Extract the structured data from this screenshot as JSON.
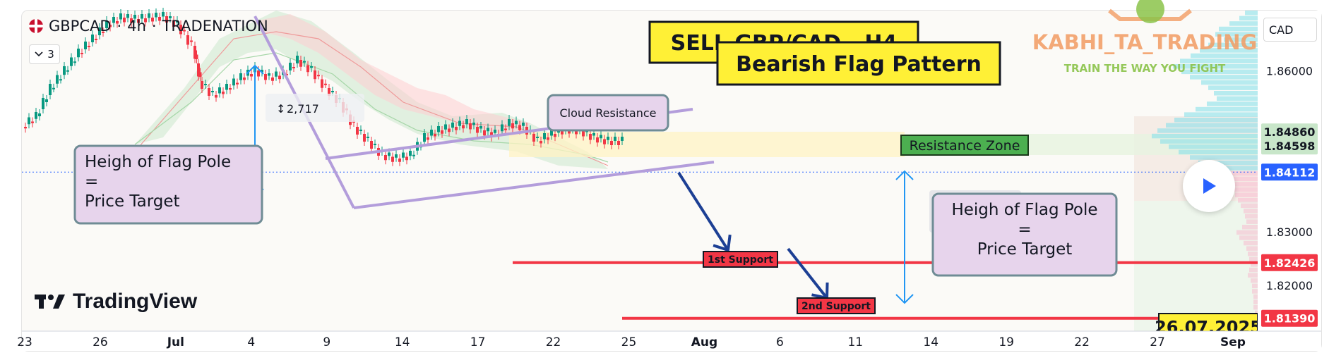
{
  "header": {
    "symbol": "GBPCAD",
    "interval": "4h",
    "source": "TRADENATION",
    "indicator_count": "3",
    "currency": "CAD"
  },
  "branding": {
    "tradingview": "TradingView",
    "watermark": "KABHI_TA_TRADING",
    "tagline": "TRAIN THE WAY YOU FIGHT"
  },
  "icons": {
    "flag": "uk-flag-icon",
    "chevron": "chevron-down-icon",
    "logo": "tradingview-logo-icon",
    "play": "play-icon",
    "measure": "measure-icon"
  },
  "colors": {
    "bull": "#089981",
    "bear": "#f23645",
    "accent": "#2962ff",
    "trendline": "#b39ddb",
    "arrow": "#1c3f94",
    "label_yellow": "#fff036",
    "resistance_green": "#4caf50",
    "support_red": "#f23645"
  },
  "chart_data": {
    "type": "candlestick",
    "title": "",
    "x_ticks": [
      "23",
      "26",
      "Jul",
      "4",
      "9",
      "14",
      "17",
      "22",
      "25",
      "Aug",
      "6",
      "11",
      "14",
      "19",
      "22",
      "27",
      "Sep"
    ],
    "y_ticks": [
      1.86,
      1.83,
      1.82
    ],
    "ylim": [
      1.8115,
      1.8712
    ],
    "price_labels": {
      "current": {
        "value": 1.84112,
        "text": "1.84112"
      },
      "r1": {
        "value": 1.8486,
        "text": "1.84860"
      },
      "r2": {
        "value": 1.84598,
        "text": "1.84598"
      },
      "s1": {
        "value": 1.82426,
        "text": "1.82426"
      },
      "s2": {
        "value": 1.8139,
        "text": "1.81390"
      }
    },
    "pattern": {
      "name": "Bearish Flag Pattern",
      "signal": "SELL GBP/CAD - H4",
      "pole_height": "2,717"
    },
    "annotations": {
      "cloud_resistance": "Cloud Resistance",
      "resistance_zone": "Resistance Zone",
      "support1": "1st Support",
      "support2": "2nd Support",
      "flag_pole_left": [
        "Heigh of Flag Pole",
        "=",
        "Price Target"
      ],
      "flag_pole_right": [
        "Heigh of Flag Pole",
        "=",
        "Price Target"
      ],
      "date_partial": "26.07.2025"
    },
    "grid": false,
    "legend": "none"
  }
}
